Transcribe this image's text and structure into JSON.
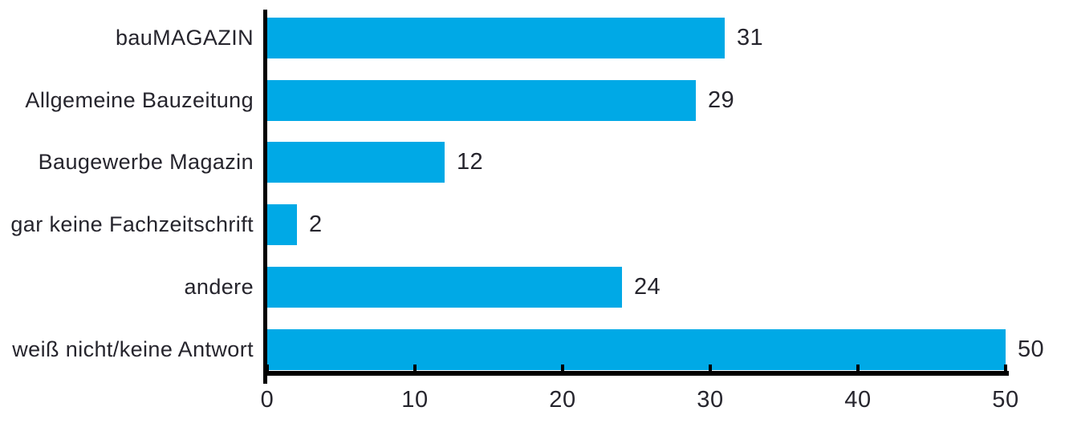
{
  "chart_data": {
    "type": "bar",
    "orientation": "horizontal",
    "title": "",
    "xlabel": "",
    "ylabel": "",
    "categories": [
      "bauMAGAZIN",
      "Allgemeine Bauzeitung",
      "Baugewerbe Magazin",
      "gar keine Fachzeitschrift",
      "andere",
      "weiß nicht/keine Antwort"
    ],
    "values": [
      31,
      29,
      12,
      2,
      24,
      50
    ],
    "x_ticks": [
      "0",
      "10",
      "20",
      "30",
      "40",
      "50"
    ],
    "x_tick_values": [
      0,
      10,
      20,
      30,
      40,
      50
    ],
    "xlim": [
      0,
      50
    ],
    "grid": false,
    "legend": "none",
    "value_labels_shown": true,
    "bar_color": "#00A9E6",
    "axis_color": "#000000",
    "text_color": "#26252D",
    "background_color": "#FFFFFF"
  }
}
